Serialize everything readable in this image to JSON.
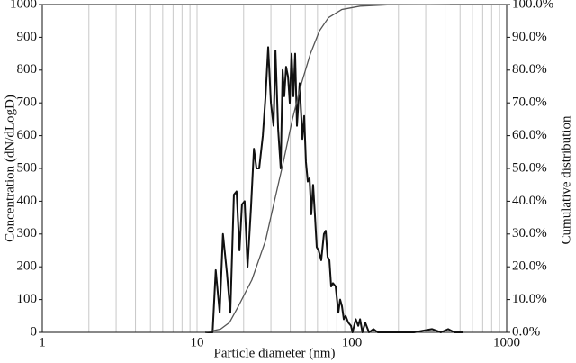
{
  "chart_data": {
    "type": "line",
    "log_x": true,
    "grid": true,
    "xlabel": "Particle diameter (nm)",
    "ylabel": "Concentration (dN/dLogD)",
    "y2label": "Cumulative distribution",
    "xlim": [
      1,
      1000
    ],
    "xticks": [
      1,
      10,
      100,
      1000
    ],
    "ylim": [
      0,
      1000
    ],
    "yticks": [
      0,
      100,
      200,
      300,
      400,
      500,
      600,
      700,
      800,
      900,
      1000
    ],
    "y2lim": [
      0,
      100
    ],
    "y2ticks": [
      {
        "value": 0,
        "label": "0.0%"
      },
      {
        "value": 10,
        "label": "10.0%"
      },
      {
        "value": 20,
        "label": "20.0%"
      },
      {
        "value": 30,
        "label": "30.0%"
      },
      {
        "value": 40,
        "label": "40.0%"
      },
      {
        "value": 50,
        "label": "50.0%"
      },
      {
        "value": 60,
        "label": "60.0%"
      },
      {
        "value": 70,
        "label": "70.0%"
      },
      {
        "value": 80,
        "label": "80.0%"
      },
      {
        "value": 90,
        "label": "90.0%"
      },
      {
        "value": 100,
        "label": "100.0%"
      }
    ],
    "series": [
      {
        "color": "#111111",
        "x": [
          11.3,
          12.6,
          13.2,
          14.0,
          14.7,
          15.6,
          16.4,
          17.3,
          18.0,
          18.8,
          19.5,
          20.3,
          21.2,
          22.3,
          23.3,
          24.2,
          25.2,
          26.6,
          27.7,
          28.8,
          30.0,
          31.2,
          32.1,
          33.4,
          34.7,
          35.7,
          36.6,
          37.6,
          38.7,
          39.7,
          40.8,
          41.9,
          43.0,
          44.2,
          46.0,
          47.9,
          49.2,
          50.5,
          51.9,
          53.3,
          54.7,
          56.2,
          57.7,
          59.3,
          61.0,
          63.4,
          66.0,
          67.8,
          69.7,
          71.6,
          73.5,
          75.5,
          78.6,
          81.8,
          84.0,
          86.3,
          88.7,
          91.1,
          94.8,
          98.7,
          101,
          106,
          110,
          113,
          117,
          122,
          129,
          138,
          147,
          169,
          193,
          220,
          252,
          329,
          376,
          419,
          460,
          526
        ],
        "values": [
          0,
          0,
          190,
          60,
          300,
          180,
          60,
          420,
          430,
          250,
          390,
          400,
          200,
          380,
          560,
          500,
          500,
          600,
          720,
          870,
          700,
          630,
          860,
          620,
          500,
          800,
          720,
          810,
          780,
          700,
          850,
          720,
          850,
          630,
          760,
          590,
          660,
          520,
          460,
          470,
          360,
          450,
          360,
          260,
          250,
          220,
          300,
          310,
          230,
          220,
          140,
          150,
          140,
          60,
          100,
          80,
          40,
          50,
          30,
          20,
          0,
          40,
          20,
          40,
          0,
          30,
          0,
          10,
          0,
          0,
          0,
          0,
          0,
          10,
          0,
          10,
          0,
          0
        ]
      },
      {
        "color": "#555555",
        "axis": "y2",
        "x": [
          11.3,
          14.2,
          16.2,
          18.5,
          22.6,
          27.7,
          31.6,
          36.1,
          41.3,
          47.3,
          54.0,
          61.8,
          70.6,
          86.3,
          113,
          169,
          430
        ],
        "values": [
          0,
          1,
          3,
          8,
          16,
          28,
          40,
          52,
          65,
          76,
          85,
          92,
          96,
          98.5,
          99.5,
          99.9,
          100
        ]
      }
    ]
  }
}
